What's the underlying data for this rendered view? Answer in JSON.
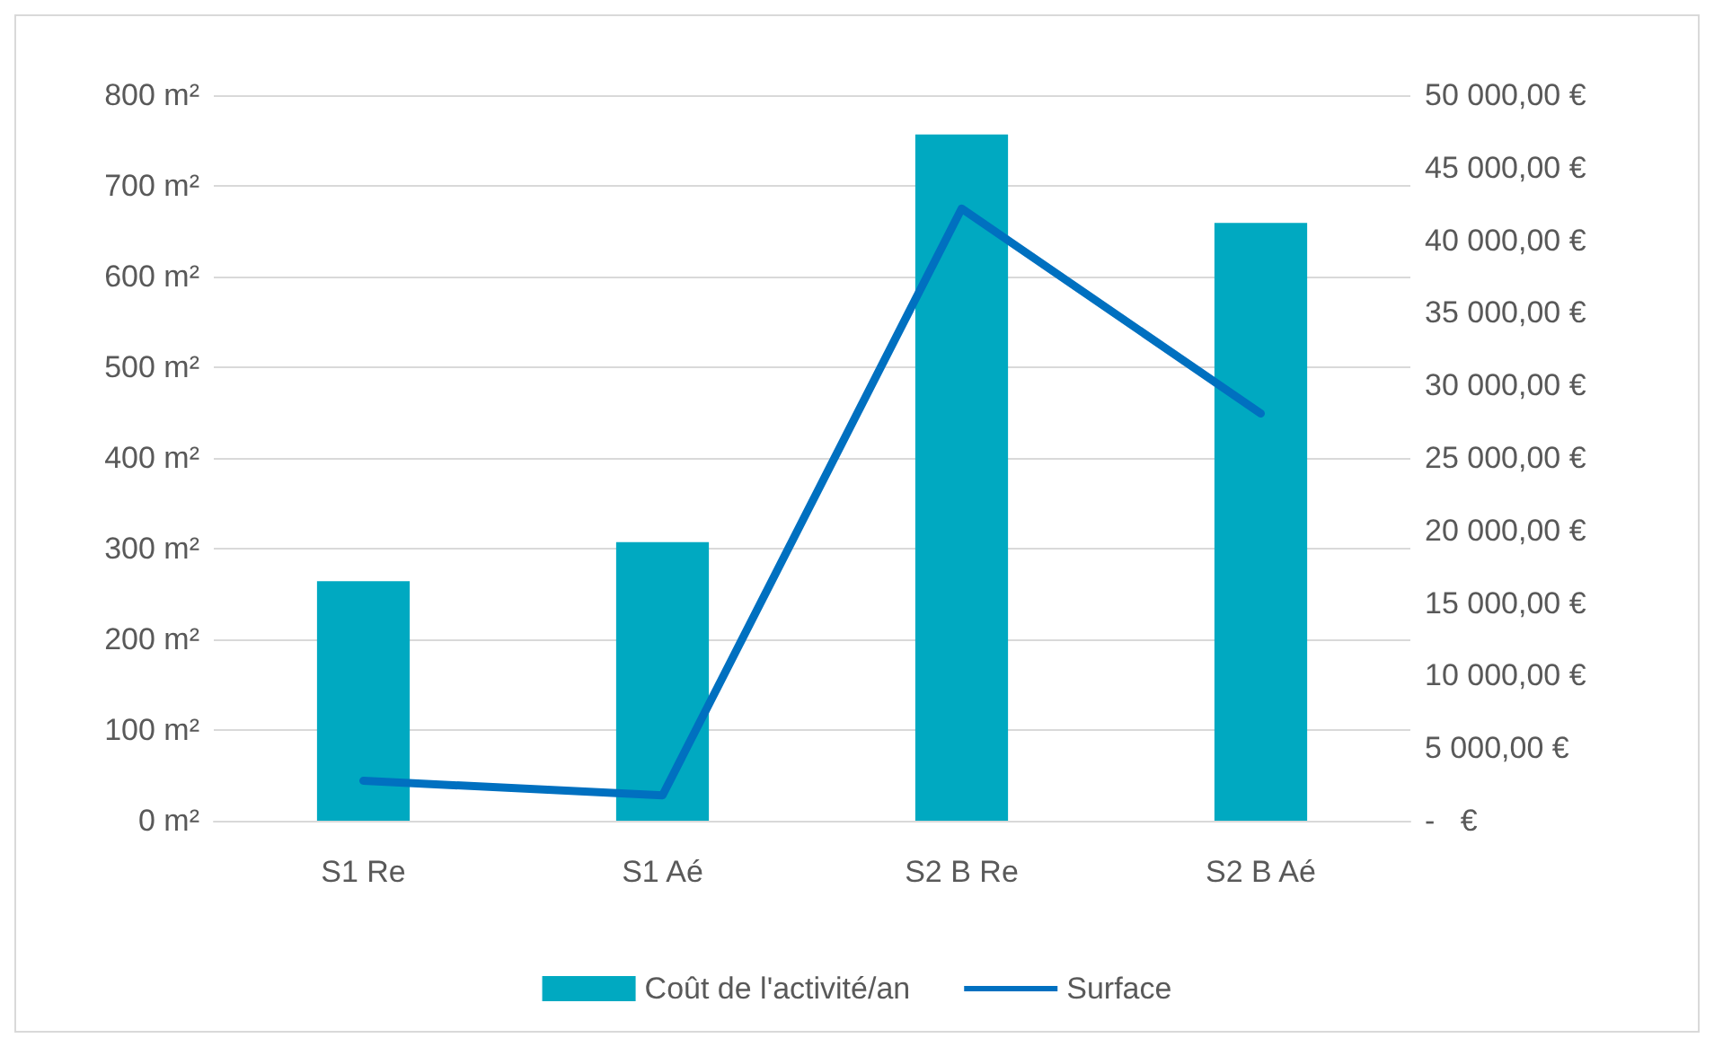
{
  "chart_data": {
    "type": "bar",
    "categories": [
      "S1 Re",
      "S1 Aé",
      "S2 B Re",
      "S2 B Aé"
    ],
    "series": [
      {
        "name": "Coût de l'activité/an",
        "axis": "y2",
        "color": "#00a9c1",
        "values": [
          16500,
          19200,
          47300,
          41200
        ]
      },
      {
        "name": "Surface",
        "type": "line",
        "axis": "y",
        "color": "#0070c0",
        "values": [
          44,
          28,
          675,
          449
        ]
      }
    ],
    "ylim": [
      0,
      800
    ],
    "yticks": [
      {
        "value": 0,
        "label": "0 m²"
      },
      {
        "value": 100,
        "label": "100 m²"
      },
      {
        "value": 200,
        "label": "200 m²"
      },
      {
        "value": 300,
        "label": "300 m²"
      },
      {
        "value": 400,
        "label": "400 m²"
      },
      {
        "value": 500,
        "label": "500 m²"
      },
      {
        "value": 600,
        "label": "600 m²"
      },
      {
        "value": 700,
        "label": "700 m²"
      },
      {
        "value": 800,
        "label": "800 m²"
      }
    ],
    "y2lim": [
      0,
      50000
    ],
    "y2ticks": [
      {
        "value": 0,
        "label": "-   €"
      },
      {
        "value": 5000,
        "label": "5 000,00 €"
      },
      {
        "value": 10000,
        "label": "10 000,00 €"
      },
      {
        "value": 15000,
        "label": "15 000,00 €"
      },
      {
        "value": 20000,
        "label": "20 000,00 €"
      },
      {
        "value": 25000,
        "label": "25 000,00 €"
      },
      {
        "value": 30000,
        "label": "30 000,00 €"
      },
      {
        "value": 35000,
        "label": "35 000,00 €"
      },
      {
        "value": 40000,
        "label": "40 000,00 €"
      },
      {
        "value": 45000,
        "label": "45 000,00 €"
      },
      {
        "value": 50000,
        "label": "50 000,00 €"
      }
    ],
    "grid": "y",
    "legend": "bottom",
    "marker": "none",
    "line_style": "solid"
  }
}
